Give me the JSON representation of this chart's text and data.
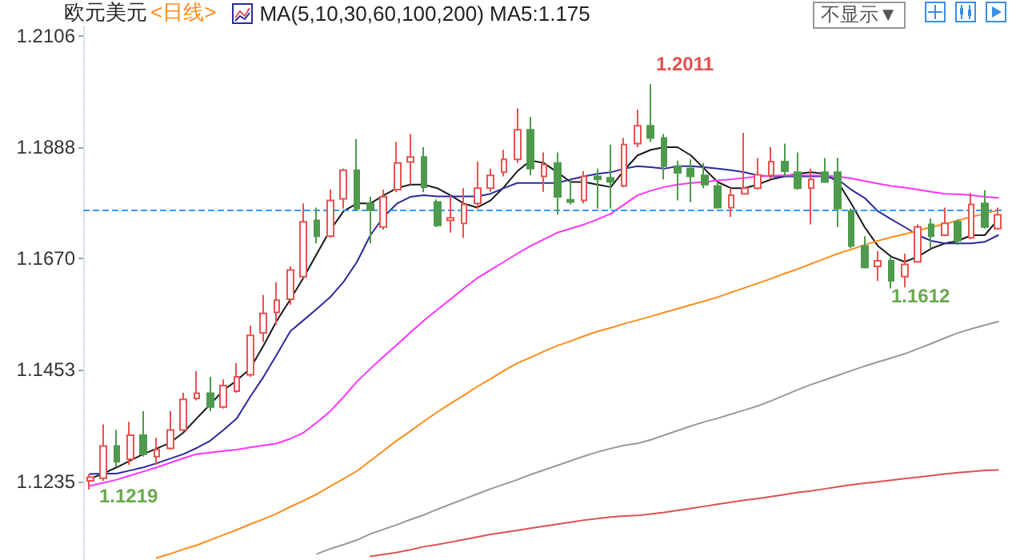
{
  "chart_data": {
    "type": "candlestick",
    "title": "欧元美元",
    "subtitle": "<日线>",
    "annotations": [
      "MA(5,10,30,60,100,200)  MA5:1.175",
      "不显示▼",
      "1.2011",
      "1.1612",
      "1.1219"
    ],
    "categories": [
      null,
      null,
      null,
      null,
      null,
      null,
      null,
      null,
      null,
      null,
      null,
      null,
      null,
      null,
      null,
      null,
      null,
      null,
      null,
      null,
      null,
      null,
      null,
      null,
      null,
      null,
      null,
      null,
      null,
      null,
      null,
      null,
      null,
      null,
      null,
      null,
      null,
      null,
      null,
      null,
      null,
      null,
      null,
      null,
      null,
      null,
      null,
      null,
      null,
      null,
      null,
      null,
      null,
      null,
      null,
      null,
      null,
      null,
      null,
      null,
      null,
      null,
      null,
      null,
      null,
      null,
      null,
      null,
      null
    ],
    "ohlc": [
      [
        1.1236,
        1.1249,
        1.1219,
        1.1243
      ],
      [
        1.1241,
        1.1346,
        1.1236,
        1.1304
      ],
      [
        1.1304,
        1.1335,
        1.1262,
        1.1273
      ],
      [
        1.1278,
        1.1351,
        1.1267,
        1.1325
      ],
      [
        1.1325,
        1.1372,
        1.1283,
        1.1288
      ],
      [
        1.1283,
        1.132,
        1.1267,
        1.1297
      ],
      [
        1.1299,
        1.1372,
        1.1297,
        1.1335
      ],
      [
        1.1335,
        1.1408,
        1.1332,
        1.1395
      ],
      [
        1.1397,
        1.145,
        1.1393,
        1.1407
      ],
      [
        1.1407,
        1.1439,
        1.1372,
        1.138
      ],
      [
        1.138,
        1.1434,
        1.1377,
        1.1422
      ],
      [
        1.1411,
        1.1466,
        1.1408,
        1.1439
      ],
      [
        1.1443,
        1.1539,
        1.1439,
        1.152
      ],
      [
        1.1525,
        1.1599,
        1.1507,
        1.1563
      ],
      [
        1.1565,
        1.1624,
        1.1541,
        1.1589
      ],
      [
        1.1591,
        1.1655,
        1.158,
        1.1648
      ],
      [
        1.1635,
        1.1778,
        1.1632,
        1.1742
      ],
      [
        1.1745,
        1.177,
        1.17,
        1.1714
      ],
      [
        1.1714,
        1.1805,
        1.1711,
        1.1784
      ],
      [
        1.1787,
        1.1846,
        1.1768,
        1.1843
      ],
      [
        1.1843,
        1.1904,
        1.1763,
        1.1768
      ],
      [
        1.1778,
        1.1791,
        1.17,
        1.1765
      ],
      [
        1.1732,
        1.1805,
        1.1727,
        1.1791
      ],
      [
        1.1805,
        1.1898,
        1.18,
        1.1857
      ],
      [
        1.1859,
        1.1914,
        1.1815,
        1.1869
      ],
      [
        1.1869,
        1.1888,
        1.18,
        1.181
      ],
      [
        1.1781,
        1.1786,
        1.1732,
        1.1735
      ],
      [
        1.1745,
        1.1794,
        1.1721,
        1.175
      ],
      [
        1.1739,
        1.1808,
        1.1711,
        1.1776
      ],
      [
        1.1778,
        1.186,
        1.1768,
        1.1808
      ],
      [
        1.1808,
        1.1846,
        1.1801,
        1.1833
      ],
      [
        1.1839,
        1.1883,
        1.1831,
        1.1864
      ],
      [
        1.1864,
        1.1964,
        1.1857,
        1.1922
      ],
      [
        1.1922,
        1.1947,
        1.1833,
        1.1846
      ],
      [
        1.1831,
        1.1878,
        1.1801,
        1.1854
      ],
      [
        1.1857,
        1.1878,
        1.1756,
        1.1791
      ],
      [
        1.1785,
        1.1825,
        1.1776,
        1.1781
      ],
      [
        1.1784,
        1.1841,
        1.1778,
        1.1831
      ],
      [
        1.1831,
        1.1846,
        1.1768,
        1.1825
      ],
      [
        1.1828,
        1.1893,
        1.1768,
        1.182
      ],
      [
        1.1812,
        1.1906,
        1.181,
        1.1893
      ],
      [
        1.1895,
        1.1961,
        1.1888,
        1.193
      ],
      [
        1.193,
        1.2011,
        1.1898,
        1.1906
      ],
      [
        1.1906,
        1.1914,
        1.1825,
        1.1851
      ],
      [
        1.1851,
        1.1862,
        1.1784,
        1.1838
      ],
      [
        1.1846,
        1.1864,
        1.1781,
        1.1831
      ],
      [
        1.1833,
        1.1857,
        1.1808,
        1.1815
      ],
      [
        1.1812,
        1.182,
        1.1768,
        1.177
      ],
      [
        1.177,
        1.1808,
        1.1752,
        1.1794
      ],
      [
        1.1797,
        1.1916,
        1.1797,
        1.1808
      ],
      [
        1.1808,
        1.1867,
        1.1805,
        1.1834
      ],
      [
        1.1833,
        1.1888,
        1.1825,
        1.186
      ],
      [
        1.186,
        1.1895,
        1.1831,
        1.1841
      ],
      [
        1.1839,
        1.1878,
        1.1805,
        1.1808
      ],
      [
        1.1808,
        1.1846,
        1.1737,
        1.1825
      ],
      [
        1.1839,
        1.1867,
        1.1818,
        1.182
      ],
      [
        1.1839,
        1.1867,
        1.1732,
        1.1768
      ],
      [
        1.1763,
        1.1768,
        1.169,
        1.1695
      ],
      [
        1.1695,
        1.1714,
        1.1651,
        1.1653
      ],
      [
        1.1655,
        1.1685,
        1.1627,
        1.1666
      ],
      [
        1.1666,
        1.1674,
        1.1612,
        1.1627
      ],
      [
        1.1635,
        1.168,
        1.1614,
        1.1659
      ],
      [
        1.1664,
        1.1737,
        1.1662,
        1.1732
      ],
      [
        1.1737,
        1.1749,
        1.169,
        1.1714
      ],
      [
        1.1716,
        1.177,
        1.1714,
        1.1739
      ],
      [
        1.1742,
        1.1747,
        1.1697,
        1.1705
      ],
      [
        1.1711,
        1.1799,
        1.1708,
        1.1776
      ],
      [
        1.1778,
        1.1804,
        1.1729,
        1.1732
      ],
      [
        1.1729,
        1.177,
        1.1727,
        1.1756
      ]
    ],
    "colors": [
      "#e8534f",
      "#e8534f",
      "#4e9a4e",
      "#e8534f",
      "#4e9a4e",
      "#e8534f",
      "#e8534f",
      "#e8534f",
      "#e8534f",
      "#4e9a4e",
      "#e8534f",
      "#e8534f",
      "#e8534f",
      "#e8534f",
      "#e8534f",
      "#e8534f",
      "#e8534f",
      "#4e9a4e",
      "#e8534f",
      "#e8534f",
      "#4e9a4e",
      "#4e9a4e",
      "#e8534f",
      "#e8534f",
      "#e8534f",
      "#4e9a4e",
      "#4e9a4e",
      "#e8534f",
      "#e8534f",
      "#e8534f",
      "#e8534f",
      "#e8534f",
      "#e8534f",
      "#4e9a4e",
      "#e8534f",
      "#4e9a4e",
      "#4e9a4e",
      "#e8534f",
      "#4e9a4e",
      "#4e9a4e",
      "#e8534f",
      "#e8534f",
      "#4e9a4e",
      "#4e9a4e",
      "#4e9a4e",
      "#4e9a4e",
      "#4e9a4e",
      "#4e9a4e",
      "#e8534f",
      "#e8534f",
      "#e8534f",
      "#e8534f",
      "#4e9a4e",
      "#4e9a4e",
      "#e8534f",
      "#4e9a4e",
      "#4e9a4e",
      "#4e9a4e",
      "#4e9a4e",
      "#e8534f",
      "#4e9a4e",
      "#e8534f",
      "#e8534f",
      "#4e9a4e",
      "#e8534f",
      "#4e9a4e",
      "#e8534f",
      "#4e9a4e",
      "#e8534f"
    ],
    "series": [
      {
        "type": "line",
        "color": "#1a1a1a",
        "values": [
          1.124,
          1.125,
          1.1262,
          1.1275,
          1.1288,
          1.1299,
          1.131,
          1.133,
          1.1358,
          1.1385,
          1.1413,
          1.1432,
          1.1455,
          1.15,
          1.1549,
          1.159,
          1.1633,
          1.168,
          1.1726,
          1.1763,
          1.1778,
          1.1778,
          1.1794,
          1.1808,
          1.1815,
          1.1815,
          1.1808,
          1.1794,
          1.1778,
          1.177,
          1.1784,
          1.181,
          1.1841,
          1.1862,
          1.1857,
          1.1839,
          1.182,
          1.182,
          1.1815,
          1.181,
          1.1843,
          1.1872,
          1.1883,
          1.1888,
          1.1888,
          1.1872,
          1.1846,
          1.182,
          1.1808,
          1.1808,
          1.1815,
          1.1825,
          1.1831,
          1.1836,
          1.1839,
          1.1836,
          1.182,
          1.1778,
          1.1732,
          1.1695,
          1.1674,
          1.1664,
          1.1674,
          1.169,
          1.17,
          1.1705,
          1.1716,
          1.1716,
          1.1747
        ]
      },
      {
        "type": "line",
        "color": "#2b2b9c",
        "values": [
          1.1249,
          1.125,
          1.125,
          1.1256,
          1.1262,
          1.127,
          1.1279,
          1.1288,
          1.13,
          1.1314,
          1.1335,
          1.1358,
          1.14,
          1.1439,
          1.1483,
          1.1528,
          1.155,
          1.1572,
          1.1595,
          1.1625,
          1.1664,
          1.1716,
          1.1752,
          1.1778,
          1.1791,
          1.1794,
          1.1792,
          1.1792,
          1.1792,
          1.1792,
          1.1797,
          1.1808,
          1.1818,
          1.1818,
          1.1818,
          1.1818,
          1.1825,
          1.1831,
          1.1836,
          1.1839,
          1.1846,
          1.1851,
          1.1849,
          1.1846,
          1.1851,
          1.1851,
          1.1849,
          1.1846,
          1.1843,
          1.1839,
          1.1833,
          1.1831,
          1.1831,
          1.1831,
          1.1831,
          1.1831,
          1.1825,
          1.1805,
          1.1789,
          1.1763,
          1.1747,
          1.1732,
          1.1716,
          1.1705,
          1.17,
          1.17,
          1.17,
          1.1703,
          1.1716
        ]
      },
      {
        "type": "line",
        "color": "#ff33ff",
        "values": [
          1.1226,
          1.1232,
          1.1238,
          1.1246,
          1.1254,
          1.1262,
          1.1271,
          1.128,
          1.1288,
          1.1291,
          1.1294,
          1.1297,
          1.1301,
          1.1305,
          1.1309,
          1.1318,
          1.133,
          1.135,
          1.1372,
          1.14,
          1.143,
          1.1455,
          1.1479,
          1.1502,
          1.1526,
          1.1549,
          1.157,
          1.1591,
          1.1612,
          1.1632,
          1.1648,
          1.1664,
          1.168,
          1.1695,
          1.1708,
          1.1721,
          1.1729,
          1.1737,
          1.1747,
          1.1758,
          1.1776,
          1.1794,
          1.1803,
          1.181,
          1.1815,
          1.1818,
          1.182,
          1.1823,
          1.1825,
          1.1828,
          1.1831,
          1.1832,
          1.1833,
          1.1833,
          1.1833,
          1.1832,
          1.1831,
          1.1827,
          1.1822,
          1.1817,
          1.1812,
          1.1809,
          1.1805,
          1.1801,
          1.1797,
          1.1796,
          1.1794,
          1.1791,
          1.1789
        ]
      },
      {
        "type": "line",
        "color": "#ff8c1a",
        "values": [
          null,
          null,
          null,
          null,
          null,
          1.1085,
          1.1093,
          1.1102,
          1.111,
          1.112,
          1.113,
          1.114,
          1.1151,
          1.1161,
          1.1172,
          1.1185,
          1.1197,
          1.121,
          1.1225,
          1.124,
          1.1255,
          1.1275,
          1.1295,
          1.1315,
          1.1333,
          1.1352,
          1.137,
          1.1387,
          1.1403,
          1.142,
          1.1435,
          1.1451,
          1.1466,
          1.1477,
          1.1489,
          1.15,
          1.1509,
          1.1519,
          1.1528,
          1.1535,
          1.1543,
          1.155,
          1.1557,
          1.1565,
          1.1572,
          1.158,
          1.1587,
          1.1595,
          1.1604,
          1.1613,
          1.1622,
          1.1631,
          1.1641,
          1.165,
          1.166,
          1.167,
          1.168,
          1.1688,
          1.1697,
          1.1705,
          1.1712,
          1.1718,
          1.1725,
          1.1732,
          1.1738,
          1.1745,
          1.1752,
          1.1758,
          1.1765
        ]
      },
      {
        "type": "line",
        "color": "#999999",
        "values": [
          null,
          null,
          null,
          null,
          null,
          null,
          null,
          null,
          null,
          null,
          null,
          null,
          null,
          null,
          null,
          null,
          null,
          1.1093,
          1.1103,
          1.1111,
          1.112,
          1.1132,
          1.1141,
          1.115,
          1.116,
          1.1169,
          1.118,
          1.119,
          1.12,
          1.121,
          1.122,
          1.1229,
          1.1238,
          1.1248,
          1.1257,
          1.1266,
          1.1275,
          1.1284,
          1.1292,
          1.1299,
          1.1305,
          1.1309,
          1.1316,
          1.1325,
          1.1334,
          1.1343,
          1.1351,
          1.1358,
          1.1366,
          1.1374,
          1.1382,
          1.1392,
          1.1403,
          1.1414,
          1.1424,
          1.1433,
          1.1442,
          1.1451,
          1.146,
          1.1468,
          1.1476,
          1.1484,
          1.1494,
          1.1504,
          1.1515,
          1.1525,
          1.1533,
          1.154,
          1.1547
        ]
      },
      {
        "type": "line",
        "color": "#e05050",
        "values": [
          null,
          null,
          null,
          null,
          null,
          null,
          null,
          null,
          null,
          null,
          null,
          null,
          null,
          null,
          null,
          null,
          null,
          null,
          null,
          null,
          null,
          1.1088,
          1.1092,
          1.1096,
          1.1101,
          1.1107,
          1.1111,
          1.1116,
          1.1121,
          1.1126,
          1.1131,
          1.1135,
          1.1139,
          1.1143,
          1.1147,
          1.1151,
          1.1155,
          1.1159,
          1.1162,
          1.1165,
          1.1167,
          1.1168,
          1.1171,
          1.1174,
          1.1178,
          1.1182,
          1.1186,
          1.119,
          1.1194,
          1.1198,
          1.1201,
          1.1205,
          1.1209,
          1.1213,
          1.1216,
          1.122,
          1.1224,
          1.1228,
          1.1231,
          1.1234,
          1.1237,
          1.124,
          1.1243,
          1.1246,
          1.1249,
          1.1252,
          1.1254,
          1.1256,
          1.1257
        ]
      }
    ],
    "ref_lines": [
      {
        "axis": "y",
        "value": 1.1764,
        "color": "#3399ff",
        "line_style": "dashed"
      }
    ],
    "ylim": [
      1.1081,
      1.2132
    ],
    "yticks": [
      1.1235,
      1.1453,
      {
        "value": 1.167,
        "label": "1.1670"
      },
      1.1888,
      1.2106
    ],
    "tick_labels": "y",
    "grid": false
  }
}
